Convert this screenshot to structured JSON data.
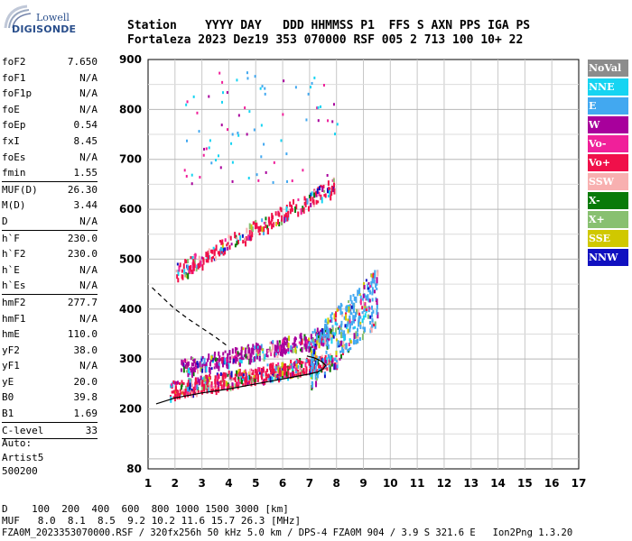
{
  "logo": {
    "top": "Lowell",
    "bottom": "DIGISONDE"
  },
  "header": {
    "labels": "Station    YYYY DAY   DDD HHMMSS P1  FFS S AXN PPS IGA PS",
    "values": "Fortaleza 2023 Dez19 353 070000 RSF 005 2 713 100 10+ 22"
  },
  "params": [
    {
      "name": "foF2",
      "value": "7.650"
    },
    {
      "name": "foF1",
      "value": "N/A"
    },
    {
      "name": "foF1p",
      "value": "N/A"
    },
    {
      "name": "foE",
      "value": "N/A"
    },
    {
      "name": "foEp",
      "value": "0.54"
    },
    {
      "name": "fxI",
      "value": "8.45"
    },
    {
      "name": "foEs",
      "value": "N/A"
    },
    {
      "name": "fmin",
      "value": "1.55"
    },
    {
      "sep": true
    },
    {
      "name": "MUF(D)",
      "value": "26.30"
    },
    {
      "name": "M(D)",
      "value": "3.44"
    },
    {
      "name": "D",
      "value": "N/A"
    },
    {
      "sep": true
    },
    {
      "name": "h`F",
      "value": "230.0"
    },
    {
      "name": "h`F2",
      "value": "230.0"
    },
    {
      "name": "h`E",
      "value": "N/A"
    },
    {
      "name": "h`Es",
      "value": "N/A"
    },
    {
      "sep": true
    },
    {
      "name": "hmF2",
      "value": "277.7"
    },
    {
      "name": "hmF1",
      "value": "N/A"
    },
    {
      "name": "hmE",
      "value": "110.0"
    },
    {
      "name": "yF2",
      "value": "38.0"
    },
    {
      "name": "yF1",
      "value": "N/A"
    },
    {
      "name": "yE",
      "value": "20.0"
    },
    {
      "name": "B0",
      "value": "39.8"
    },
    {
      "name": "B1",
      "value": "1.69"
    },
    {
      "sep": true
    },
    {
      "name": "C-level",
      "value": "33"
    },
    {
      "sep": true
    }
  ],
  "auto_block": [
    "Auto:",
    "Artist5",
    "500200"
  ],
  "legend": [
    {
      "label": "NoVal",
      "color": "#8c8c8c"
    },
    {
      "label": "NNE",
      "color": "#16d4f2"
    },
    {
      "label": "E",
      "color": "#42a8f0"
    },
    {
      "label": "W",
      "color": "#a8009c"
    },
    {
      "label": "Vo-",
      "color": "#f0209a"
    },
    {
      "label": "Vo+",
      "color": "#f0104a"
    },
    {
      "label": "SSW",
      "color": "#f8b0b0"
    },
    {
      "label": "X-",
      "color": "#087a08"
    },
    {
      "label": "X+",
      "color": "#88c070"
    },
    {
      "label": "SSE",
      "color": "#d0c800"
    },
    {
      "label": "NNW",
      "color": "#1010c0"
    }
  ],
  "footer": {
    "d_row": "D    100  200  400  600  800 1000 1500 3000 [km]",
    "muf_row": "MUF   8.0  8.1  8.5  9.2 10.2 11.6 15.7 26.3 [MHz]",
    "file_row": "FZA0M_2023353070000.RSF / 320fx256h 50 kHz 5.0 km / DPS-4 FZA0M 904 / 3.9 S 321.6 E   Ion2Png 1.3.20"
  },
  "chart_data": {
    "type": "scatter",
    "xlim": [
      1,
      17
    ],
    "ylim": [
      80,
      900
    ],
    "x_ticks": [
      1,
      2,
      3,
      4,
      5,
      6,
      7,
      8,
      9,
      10,
      11,
      12,
      13,
      14,
      15,
      16,
      17
    ],
    "y_ticks": [
      80,
      200,
      300,
      400,
      500,
      600,
      700,
      800,
      900
    ],
    "grid": true,
    "echo_bands": [
      {
        "name": "O-trace F2",
        "x_from": 1.8,
        "x_to": 8.0,
        "h_from": 240,
        "h_to": 300,
        "color": "#f0104a"
      },
      {
        "name": "O-trace upper",
        "x_from": 2.2,
        "x_to": 7.8,
        "h_from": 285,
        "h_to": 350,
        "color": "#a8009c"
      },
      {
        "name": "second hop",
        "x_from": 2.0,
        "x_to": 7.9,
        "h_from": 475,
        "h_to": 650,
        "color": "#f0104a"
      },
      {
        "name": "spread F",
        "x_from": 7.0,
        "x_to": 9.5,
        "h_from": 300,
        "h_to": 430,
        "color": "#42a8f0"
      }
    ],
    "profile_curve": {
      "x": [
        1.3,
        2.0,
        3.0,
        4.0,
        5.0,
        6.0,
        6.5,
        7.0,
        7.3,
        7.5,
        7.6,
        7.45,
        7.2,
        6.9
      ],
      "y": [
        210,
        222,
        232,
        240,
        250,
        260,
        265,
        270,
        274,
        280,
        287,
        295,
        302,
        306
      ]
    },
    "dashed_curve": {
      "x": [
        1.15,
        1.6,
        2.0,
        2.5,
        3.0,
        3.5,
        3.9
      ],
      "y": [
        443,
        420,
        400,
        380,
        362,
        344,
        328
      ]
    }
  }
}
